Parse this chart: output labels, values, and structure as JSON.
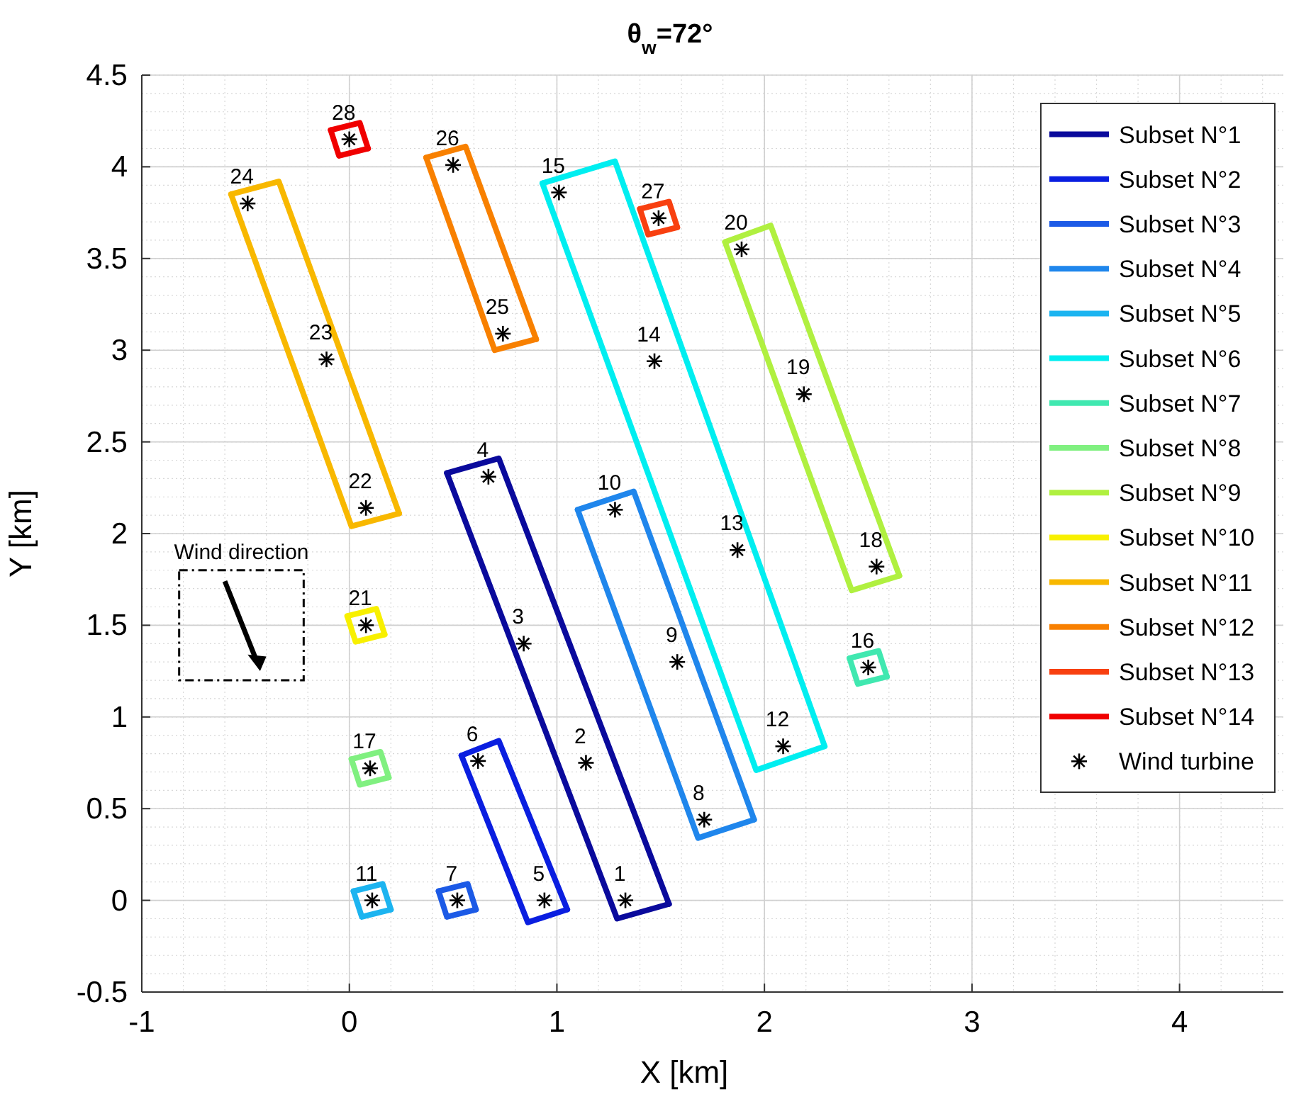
{
  "chart_data": {
    "type": "line",
    "title": "θ$_{w}$=72°",
    "xlabel": "X [km]",
    "ylabel": "Y [km]",
    "xlim": [
      -1,
      4.5
    ],
    "ylim": [
      -0.5,
      4.5
    ],
    "xticks": [
      -1,
      0,
      1,
      2,
      3,
      4
    ],
    "yticks": [
      -0.5,
      0,
      0.5,
      1,
      1.5,
      2,
      2.5,
      3,
      3.5,
      4,
      4.5
    ],
    "grid": true,
    "legend": "top right",
    "marker": "none",
    "line_style": "solid",
    "series": [
      {
        "name": "Subset N°1",
        "color": "#0a0a9c",
        "x": [
          0.47,
          0.72,
          1.54
        ],
        "values": [
          2.33,
          2.41,
          -0.02
        ]
      },
      {
        "color": "#0a0a9c",
        "x": [
          0.47,
          1.29,
          1.54
        ],
        "values": [
          2.33,
          -0.1,
          -0.02
        ]
      },
      {
        "name": "Subset N°2",
        "color": "#0a1ee0",
        "x": [
          0.54,
          0.72,
          1.05
        ],
        "values": [
          0.79,
          0.87,
          -0.05
        ]
      },
      {
        "color": "#0a1ee0",
        "x": [
          0.54,
          0.86,
          1.05
        ],
        "values": [
          0.79,
          -0.12,
          -0.05
        ]
      },
      {
        "name": "Subset N°3",
        "color": "#1c5ae6",
        "x": [
          0.43,
          0.57,
          0.61
        ],
        "values": [
          0.05,
          0.09,
          -0.05
        ]
      },
      {
        "color": "#1c5ae6",
        "x": [
          0.43,
          0.47,
          0.61
        ],
        "values": [
          0.05,
          -0.09,
          -0.05
        ]
      },
      {
        "name": "Subset N°4",
        "color": "#1f86ec",
        "x": [
          1.1,
          1.37,
          1.95
        ],
        "values": [
          2.13,
          2.23,
          0.44
        ]
      },
      {
        "color": "#1f86ec",
        "x": [
          1.1,
          1.68,
          1.95
        ],
        "values": [
          2.13,
          0.34,
          0.44
        ]
      },
      {
        "name": "Subset N°5",
        "color": "#1cb4f0",
        "x": [
          0.02,
          0.16,
          0.2
        ],
        "values": [
          0.05,
          0.09,
          -0.05
        ]
      },
      {
        "color": "#1cb4f0",
        "x": [
          0.02,
          0.06,
          0.2
        ],
        "values": [
          0.05,
          -0.09,
          -0.05
        ]
      },
      {
        "name": "Subset N°6",
        "color": "#00eef0",
        "x": [
          0.93,
          1.28,
          2.29
        ],
        "values": [
          3.91,
          4.03,
          0.84
        ]
      },
      {
        "color": "#00eef0",
        "x": [
          0.93,
          1.96,
          2.29
        ],
        "values": [
          3.91,
          0.71,
          0.84
        ]
      },
      {
        "name": "Subset N°7",
        "color": "#40e8b0",
        "x": [
          2.41,
          2.55,
          2.59
        ],
        "values": [
          1.32,
          1.36,
          1.22
        ]
      },
      {
        "color": "#40e8b0",
        "x": [
          2.41,
          2.45,
          2.59
        ],
        "values": [
          1.32,
          1.18,
          1.22
        ]
      },
      {
        "name": "Subset N°8",
        "color": "#80f080",
        "x": [
          0.01,
          0.15,
          0.19
        ],
        "values": [
          0.77,
          0.81,
          0.67
        ]
      },
      {
        "color": "#80f080",
        "x": [
          0.01,
          0.05,
          0.19
        ],
        "values": [
          0.77,
          0.63,
          0.67
        ]
      },
      {
        "name": "Subset N°9",
        "color": "#b0f040",
        "x": [
          1.81,
          2.03,
          2.65
        ],
        "values": [
          3.59,
          3.68,
          1.77
        ]
      },
      {
        "color": "#b0f040",
        "x": [
          1.81,
          2.42,
          2.65
        ],
        "values": [
          3.59,
          1.69,
          1.77
        ]
      },
      {
        "name": "Subset N°10",
        "color": "#f8f000",
        "x": [
          -0.01,
          0.13,
          0.17
        ],
        "values": [
          1.55,
          1.59,
          1.45
        ]
      },
      {
        "color": "#f8f000",
        "x": [
          -0.01,
          0.03,
          0.17
        ],
        "values": [
          1.55,
          1.41,
          1.45
        ]
      },
      {
        "name": "Subset N°11",
        "color": "#f8b800",
        "x": [
          -0.57,
          -0.34,
          0.24
        ],
        "values": [
          3.85,
          3.92,
          2.11
        ]
      },
      {
        "color": "#f8b800",
        "x": [
          -0.57,
          0.01,
          0.24
        ],
        "values": [
          3.85,
          2.04,
          2.11
        ]
      },
      {
        "name": "Subset N°12",
        "color": "#f88000",
        "x": [
          0.37,
          0.56,
          0.9
        ],
        "values": [
          4.05,
          4.11,
          3.06
        ]
      },
      {
        "color": "#f88000",
        "x": [
          0.37,
          0.7,
          0.9
        ],
        "values": [
          4.05,
          3.0,
          3.06
        ]
      },
      {
        "name": "Subset N°13",
        "color": "#f84010",
        "x": [
          1.4,
          1.54,
          1.58
        ],
        "values": [
          3.77,
          3.81,
          3.67
        ]
      },
      {
        "color": "#f84010",
        "x": [
          1.4,
          1.44,
          1.58
        ],
        "values": [
          3.77,
          3.63,
          3.67
        ]
      },
      {
        "name": "Subset N°14",
        "color": "#f00000",
        "x": [
          -0.09,
          0.05,
          0.09
        ],
        "values": [
          4.2,
          4.24,
          4.1
        ]
      },
      {
        "color": "#f00000",
        "x": [
          -0.09,
          -0.05,
          0.09
        ],
        "values": [
          4.2,
          4.06,
          4.1
        ]
      },
      {
        "name": "Wind turbine",
        "type": "scatter",
        "marker": "cross",
        "color": "#000000",
        "x": [
          1.33,
          1.14,
          0.84,
          0.67,
          0.94,
          0.62,
          0.52,
          1.71,
          1.58,
          1.28,
          0.11,
          2.09,
          1.87,
          1.47,
          1.01,
          2.5,
          0.1,
          2.54,
          2.19,
          1.89,
          0.08,
          0.08,
          -0.11,
          -0.49,
          0.74,
          0.5,
          1.49,
          0.0
        ],
        "values": [
          0,
          0.75,
          1.4,
          2.31,
          0,
          0.76,
          0,
          0.44,
          1.3,
          2.13,
          0,
          0.84,
          1.91,
          2.94,
          3.86,
          1.27,
          0.72,
          1.82,
          2.76,
          3.55,
          1.5,
          2.14,
          2.95,
          3.8,
          3.09,
          4.01,
          3.72,
          4.15
        ]
      }
    ],
    "annotations": [
      "Wind direction",
      {
        "text": "1",
        "x": 1.33,
        "y": 0
      },
      {
        "text": "2",
        "x": 1.14,
        "y": 0.75
      },
      {
        "text": "3",
        "x": 0.84,
        "y": 1.4
      },
      {
        "text": "4",
        "x": 0.67,
        "y": 2.31
      },
      {
        "text": "5",
        "x": 0.94,
        "y": 0
      },
      {
        "text": "6",
        "x": 0.62,
        "y": 0.76
      },
      {
        "text": "7",
        "x": 0.52,
        "y": 0
      },
      {
        "text": "8",
        "x": 1.71,
        "y": 0.44
      },
      {
        "text": "9",
        "x": 1.58,
        "y": 1.3
      },
      {
        "text": "10",
        "x": 1.28,
        "y": 2.13
      },
      {
        "text": "11",
        "x": 0.11,
        "y": 0
      },
      {
        "text": "12",
        "x": 2.09,
        "y": 0.84
      },
      {
        "text": "13",
        "x": 1.87,
        "y": 1.91
      },
      {
        "text": "14",
        "x": 1.47,
        "y": 2.94
      },
      {
        "text": "15",
        "x": 1.01,
        "y": 3.86
      },
      {
        "text": "16",
        "x": 2.5,
        "y": 1.27
      },
      {
        "text": "17",
        "x": 0.1,
        "y": 0.72
      },
      {
        "text": "18",
        "x": 2.54,
        "y": 1.82
      },
      {
        "text": "19",
        "x": 2.19,
        "y": 2.76
      },
      {
        "text": "20",
        "x": 1.89,
        "y": 3.55
      },
      {
        "text": "21",
        "x": 0.08,
        "y": 1.5
      },
      {
        "text": "22",
        "x": 0.08,
        "y": 2.14
      },
      {
        "text": "23",
        "x": -0.11,
        "y": 2.95
      },
      {
        "text": "24",
        "x": -0.49,
        "y": 3.8
      },
      {
        "text": "25",
        "x": 0.74,
        "y": 3.09
      },
      {
        "text": "26",
        "x": 0.5,
        "y": 4.01
      },
      {
        "text": "27",
        "x": 1.49,
        "y": 3.72
      },
      {
        "text": "28",
        "x": 0.0,
        "y": 4.15
      }
    ]
  }
}
